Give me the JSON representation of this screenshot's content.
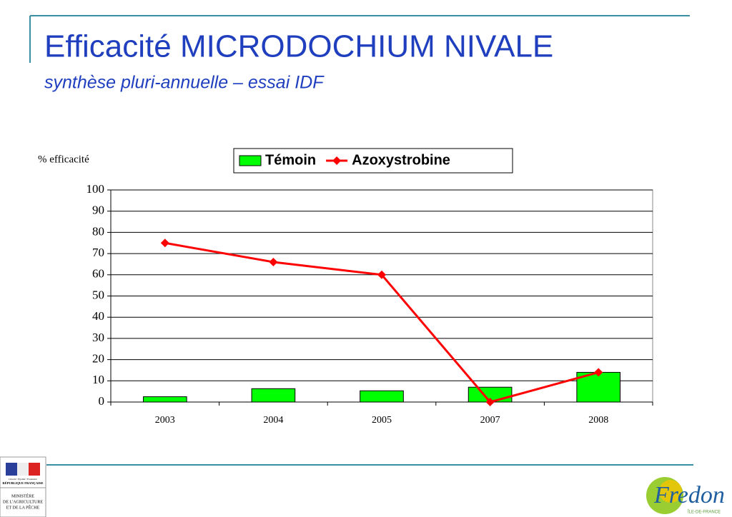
{
  "chart_data": {
    "type": "bar",
    "title": "Efficacité MICRODOCHIUM NIVALE",
    "subtitle": "synthèse pluri-annuelle – essai IDF",
    "y_label": "% efficacité",
    "categories": [
      "2003",
      "2004",
      "2005",
      "2007",
      "2008"
    ],
    "series": [
      {
        "name": "Témoin",
        "type": "bar",
        "color": "#00ff00",
        "values": [
          2.5,
          6.3,
          5.3,
          7,
          14
        ]
      },
      {
        "name": "Azoxystrobine",
        "type": "line",
        "color": "#ff0000",
        "values": [
          75,
          66,
          60,
          0,
          14
        ]
      }
    ],
    "ylim": [
      0,
      100
    ],
    "yticks": [
      0,
      10,
      20,
      30,
      40,
      50,
      60,
      70,
      80,
      90,
      100
    ],
    "grid": true,
    "legend": "top"
  },
  "logos": {
    "ministry_motto": "Liberté • Égalité • Fraternité",
    "republic": "RÉPUBLIQUE FRANÇAISE",
    "ministry": [
      "MINISTÈRE",
      "DE L'AGRICULTURE",
      "ET DE LA PÊCHE"
    ],
    "fredon": "Fredon",
    "fredon_region": "ÎLE-DE-FRANCE"
  }
}
